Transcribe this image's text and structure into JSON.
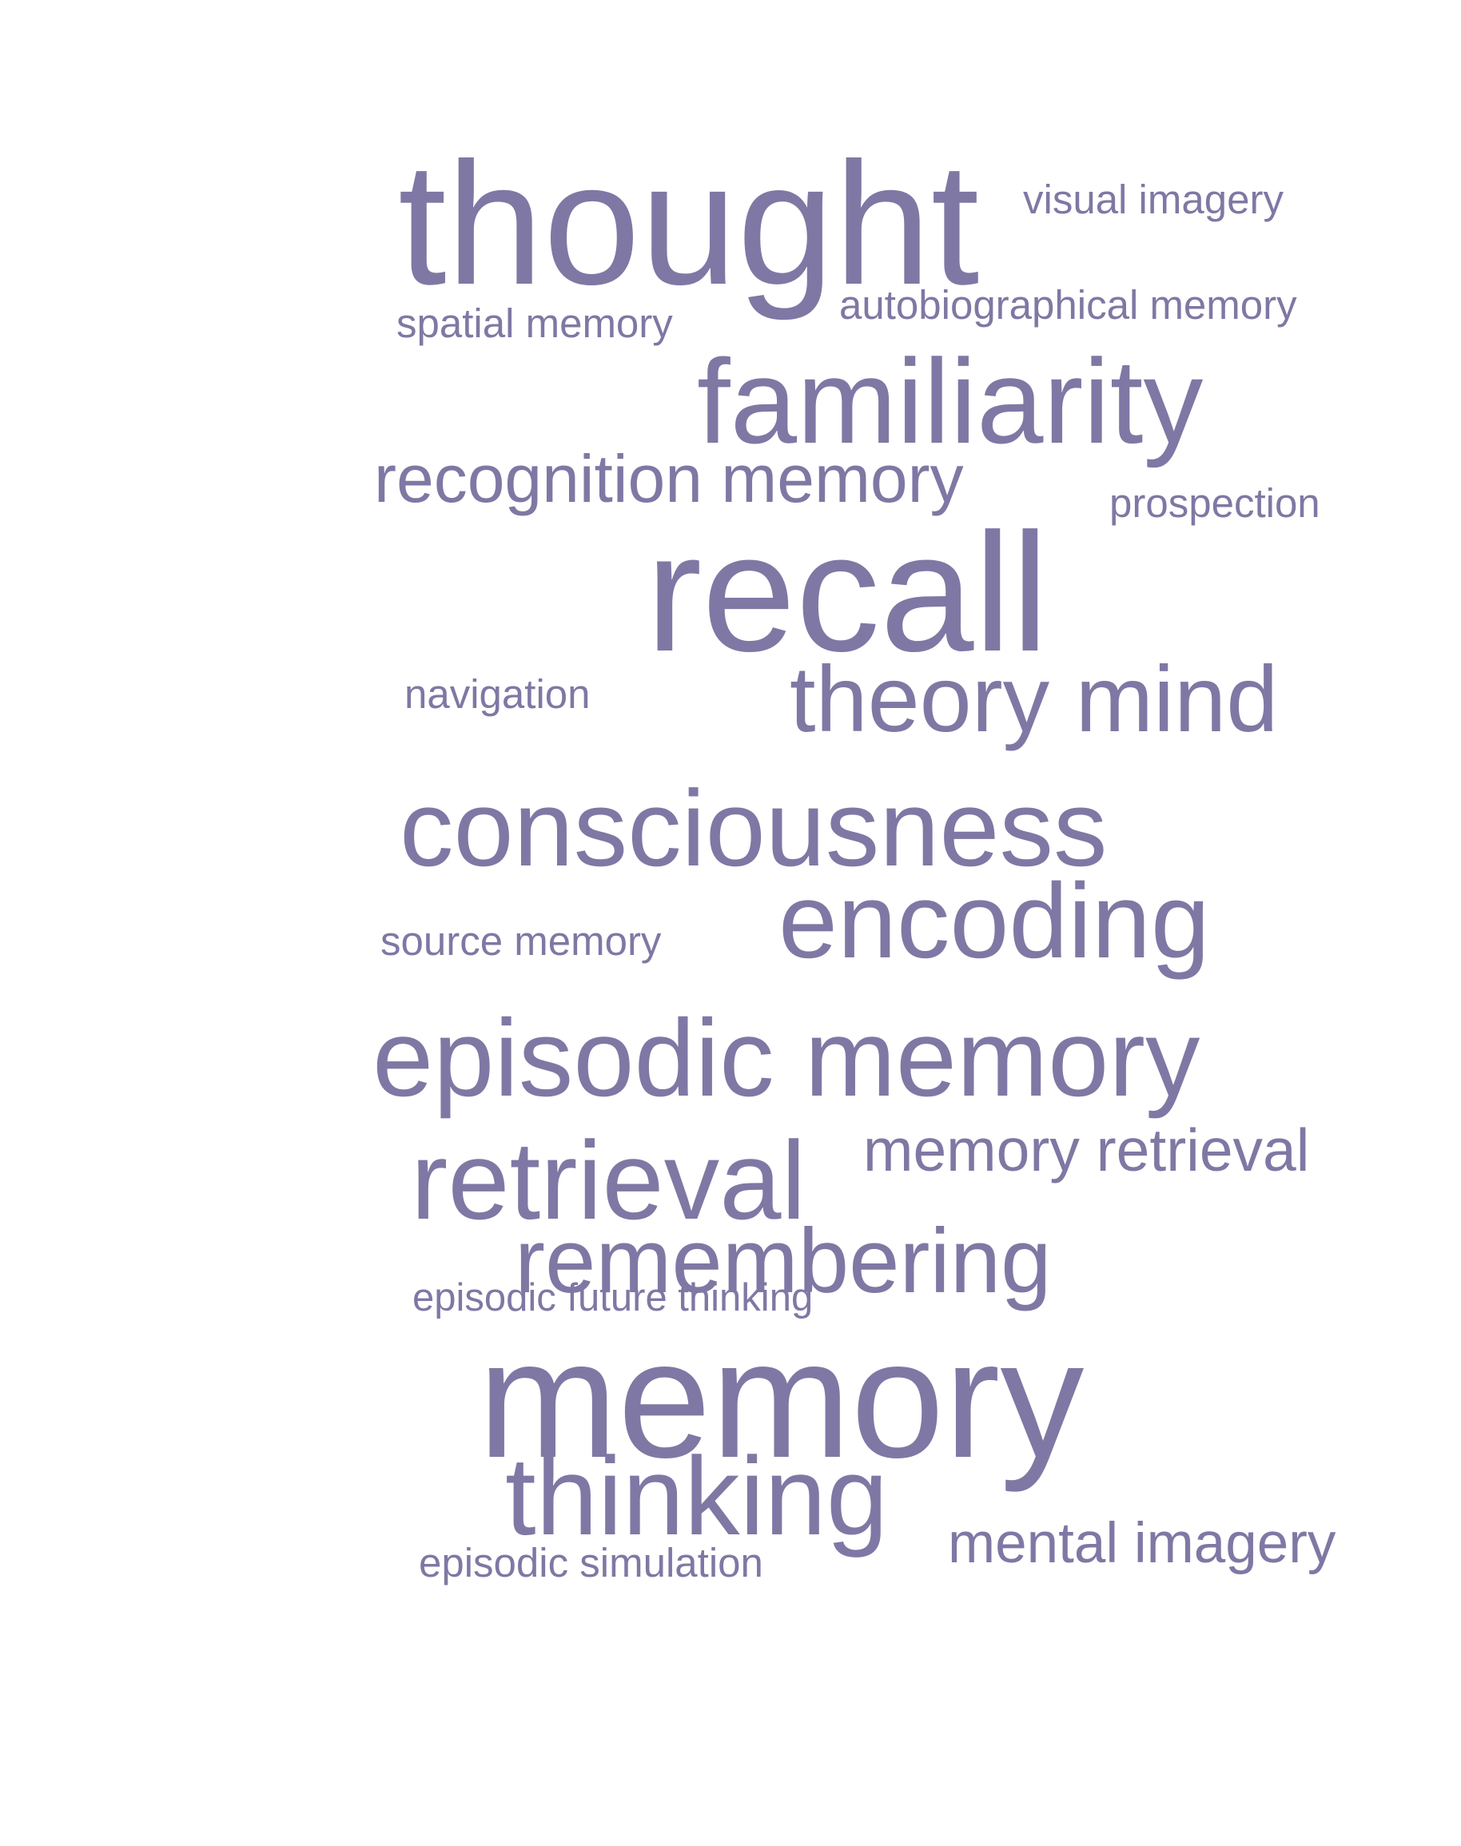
{
  "theme": {
    "word_color": "#7f78a4",
    "background": "#ffffff"
  },
  "words": [
    {
      "id": "thought",
      "text": "thought"
    },
    {
      "id": "visual-imagery",
      "text": "visual imagery"
    },
    {
      "id": "spatial-memory",
      "text": "spatial memory"
    },
    {
      "id": "autobiographical-memory",
      "text": "autobiographical memory"
    },
    {
      "id": "familiarity",
      "text": "familiarity"
    },
    {
      "id": "recognition-memory",
      "text": "recognition memory"
    },
    {
      "id": "prospection",
      "text": "prospection"
    },
    {
      "id": "recall",
      "text": "recall"
    },
    {
      "id": "navigation",
      "text": "navigation"
    },
    {
      "id": "theory-mind",
      "text": "theory mind"
    },
    {
      "id": "consciousness",
      "text": "consciousness"
    },
    {
      "id": "source-memory",
      "text": "source memory"
    },
    {
      "id": "encoding",
      "text": "encoding"
    },
    {
      "id": "episodic-memory",
      "text": "episodic memory"
    },
    {
      "id": "retrieval",
      "text": "retrieval"
    },
    {
      "id": "memory-retrieval",
      "text": "memory retrieval"
    },
    {
      "id": "remembering",
      "text": "remembering"
    },
    {
      "id": "episodic-future-thinking",
      "text": "episodic future thinking"
    },
    {
      "id": "memory",
      "text": "memory"
    },
    {
      "id": "thinking",
      "text": "thinking"
    },
    {
      "id": "mental-imagery",
      "text": "mental imagery"
    },
    {
      "id": "episodic-simulation",
      "text": "episodic simulation"
    }
  ]
}
